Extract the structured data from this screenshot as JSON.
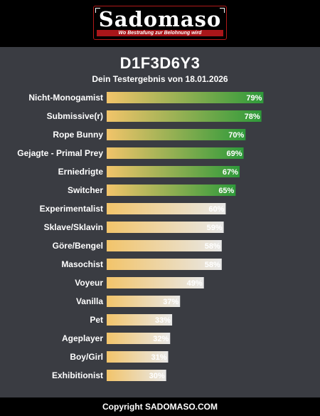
{
  "brand": {
    "name": "Sadomaso",
    "tagline": "Wo Bestrafung zur Belohnung wird"
  },
  "header": {
    "title": "D1F3D6Y3",
    "subtitle": "Dein Testergebnis von 18.01.2026"
  },
  "footer": {
    "text": "Copyright SADOMASO.COM"
  },
  "colors": {
    "background": "#3a3c42",
    "bar_start": "#f2c46a",
    "bar_high_end": "#2e9a3a",
    "bar_low_end": "#e8e8e8",
    "logo_red": "#a9161a"
  },
  "chart_data": {
    "type": "bar",
    "orientation": "horizontal",
    "xlim": [
      0,
      100
    ],
    "value_suffix": "%",
    "highlight_threshold": 65,
    "categories": [
      "Nicht-Monogamist",
      "Submissive(r)",
      "Rope Bunny",
      "Gejagte - Primal Prey",
      "Erniedrigte",
      "Switcher",
      "Experimentalist",
      "Sklave/Sklavin",
      "Göre/Bengel",
      "Masochist",
      "Voyeur",
      "Vanilla",
      "Pet",
      "Ageplayer",
      "Boy/Girl",
      "Exhibitionist"
    ],
    "values": [
      79,
      78,
      70,
      69,
      67,
      65,
      60,
      59,
      58,
      58,
      49,
      37,
      33,
      32,
      31,
      30
    ],
    "value_labels": [
      "79%",
      "78%",
      "70%",
      "69%",
      "67%",
      "65%",
      "60%",
      "59%",
      "58%",
      "58%",
      "49%",
      "37%",
      "33%",
      "32%",
      "31%",
      "30%"
    ]
  }
}
